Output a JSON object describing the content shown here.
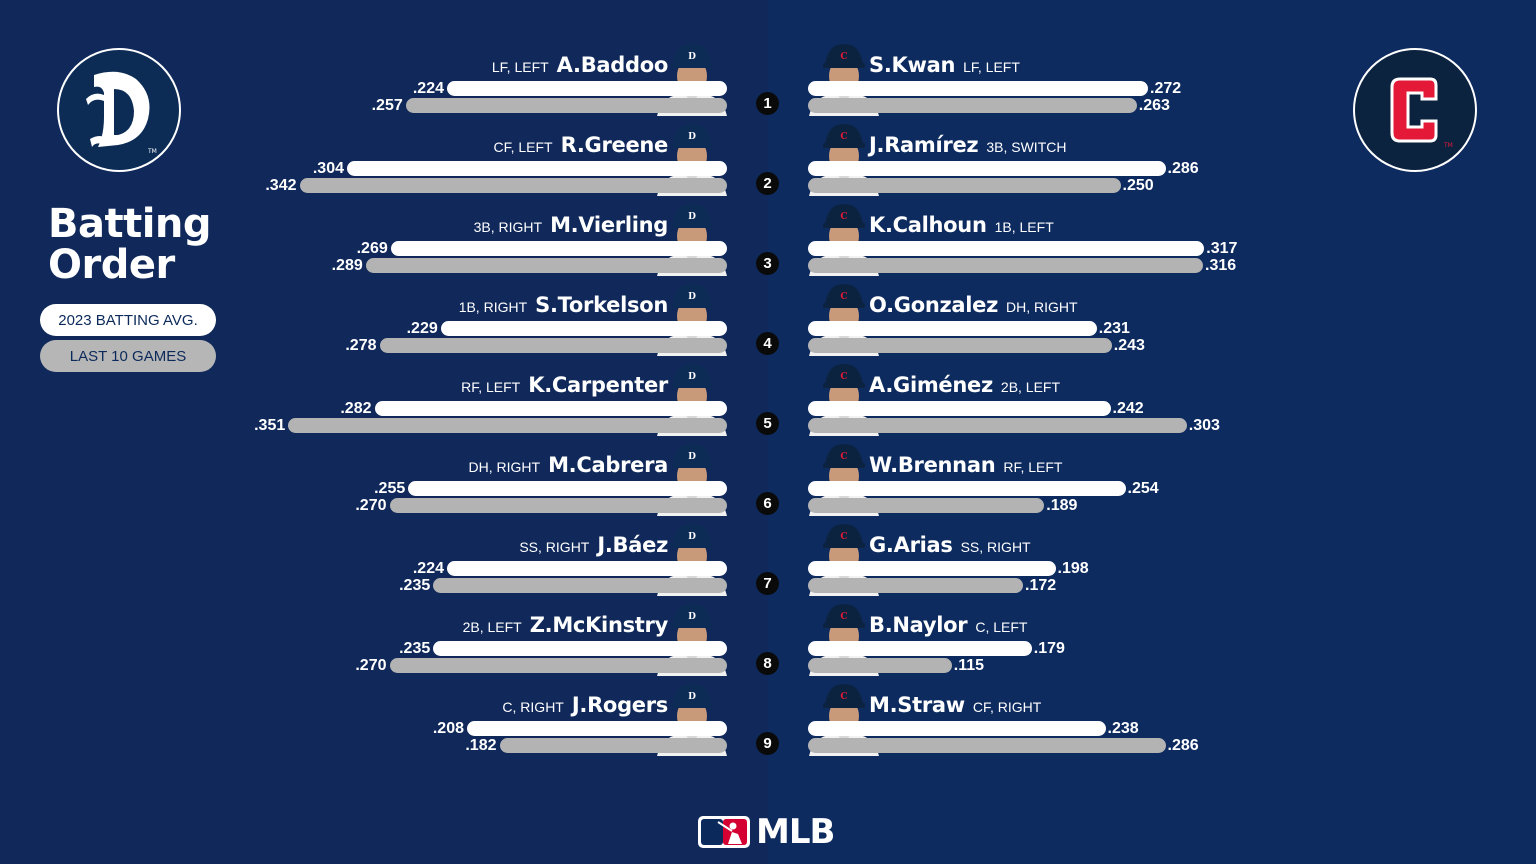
{
  "title": "Batting Order",
  "legend": {
    "season_label": "2023 BATTING AVG.",
    "recent_label": "LAST 10 GAMES"
  },
  "teams": {
    "away": {
      "logo_letter": "D",
      "cap_letter": "D",
      "primary": "#0c2c56",
      "accent": "#fa4616"
    },
    "home": {
      "logo_letter": "C",
      "cap_letter": "C",
      "primary": "#0c2340",
      "accent": "#e31937"
    }
  },
  "brand": {
    "mlb_text": "MLB"
  },
  "chart_data": {
    "type": "bar",
    "xlim": [
      0,
      0.36
    ],
    "series": [
      {
        "name": "2023 BATTING AVG.",
        "color": "#ffffff"
      },
      {
        "name": "LAST 10 GAMES",
        "color": "#b3b3b3"
      }
    ],
    "order": [
      "1",
      "2",
      "3",
      "4",
      "5",
      "6",
      "7",
      "8",
      "9"
    ],
    "away_lineup": [
      {
        "name": "A.Baddoo",
        "pos": "LF, LEFT",
        "avg_label": ".224",
        "l10_label": ".257",
        "avg": 0.224,
        "l10": 0.257
      },
      {
        "name": "R.Greene",
        "pos": "CF, LEFT",
        "avg_label": ".304",
        "l10_label": ".342",
        "avg": 0.304,
        "l10": 0.342
      },
      {
        "name": "M.Vierling",
        "pos": "3B, RIGHT",
        "avg_label": ".269",
        "l10_label": ".289",
        "avg": 0.269,
        "l10": 0.289
      },
      {
        "name": "S.Torkelson",
        "pos": "1B, RIGHT",
        "avg_label": ".229",
        "l10_label": ".278",
        "avg": 0.229,
        "l10": 0.278
      },
      {
        "name": "K.Carpenter",
        "pos": "RF, LEFT",
        "avg_label": ".282",
        "l10_label": ".351",
        "avg": 0.282,
        "l10": 0.351
      },
      {
        "name": "M.Cabrera",
        "pos": "DH, RIGHT",
        "avg_label": ".255",
        "l10_label": ".270",
        "avg": 0.255,
        "l10": 0.27
      },
      {
        "name": "J.Báez",
        "pos": "SS, RIGHT",
        "avg_label": ".224",
        "l10_label": ".235",
        "avg": 0.224,
        "l10": 0.235
      },
      {
        "name": "Z.McKinstry",
        "pos": "2B, LEFT",
        "avg_label": ".235",
        "l10_label": ".270",
        "avg": 0.235,
        "l10": 0.27
      },
      {
        "name": "J.Rogers",
        "pos": "C, RIGHT",
        "avg_label": ".208",
        "l10_label": ".182",
        "avg": 0.208,
        "l10": 0.182
      }
    ],
    "home_lineup": [
      {
        "name": "S.Kwan",
        "pos": "LF, LEFT",
        "avg_label": ".272",
        "l10_label": ".263",
        "avg": 0.272,
        "l10": 0.263
      },
      {
        "name": "J.Ramírez",
        "pos": "3B, SWITCH",
        "avg_label": ".286",
        "l10_label": ".250",
        "avg": 0.286,
        "l10": 0.25
      },
      {
        "name": "K.Calhoun",
        "pos": "1B, LEFT",
        "avg_label": ".317",
        "l10_label": ".316",
        "avg": 0.317,
        "l10": 0.316
      },
      {
        "name": "O.Gonzalez",
        "pos": "DH, RIGHT",
        "avg_label": ".231",
        "l10_label": ".243",
        "avg": 0.231,
        "l10": 0.243
      },
      {
        "name": "A.Giménez",
        "pos": "2B, LEFT",
        "avg_label": ".242",
        "l10_label": ".303",
        "avg": 0.242,
        "l10": 0.303
      },
      {
        "name": "W.Brennan",
        "pos": "RF, LEFT",
        "avg_label": ".254",
        "l10_label": ".189",
        "avg": 0.254,
        "l10": 0.189
      },
      {
        "name": "G.Arias",
        "pos": "SS, RIGHT",
        "avg_label": ".198",
        "l10_label": ".172",
        "avg": 0.198,
        "l10": 0.172
      },
      {
        "name": "B.Naylor",
        "pos": "C, LEFT",
        "avg_label": ".179",
        "l10_label": ".115",
        "avg": 0.179,
        "l10": 0.115
      },
      {
        "name": "M.Straw",
        "pos": "CF, RIGHT",
        "avg_label": ".238",
        "l10_label": ".286",
        "avg": 0.238,
        "l10": 0.286
      }
    ]
  }
}
